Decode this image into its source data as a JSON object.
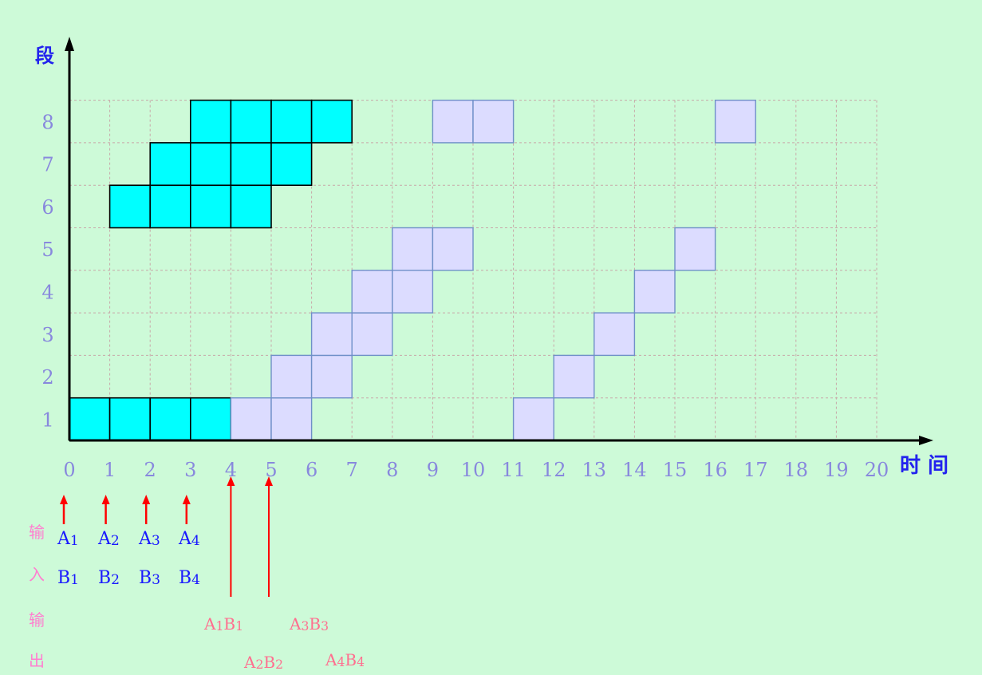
{
  "chart_data": {
    "type": "pipeline-space-time-diagram",
    "y_axis_label": "段",
    "x_axis_label": "时 间",
    "x_ticks": [
      0,
      1,
      2,
      3,
      4,
      5,
      6,
      7,
      8,
      9,
      10,
      11,
      12,
      13,
      14,
      15,
      16,
      17,
      18,
      19,
      20
    ],
    "y_ticks": [
      1,
      2,
      3,
      4,
      5,
      6,
      7,
      8
    ],
    "xlim": [
      0,
      20
    ],
    "ylim": [
      1,
      8
    ],
    "grid": true,
    "series": [
      {
        "color": "#00ffff",
        "cells": [
          {
            "segment": 1,
            "start": 0
          },
          {
            "segment": 1,
            "start": 1
          },
          {
            "segment": 1,
            "start": 2
          },
          {
            "segment": 1,
            "start": 3
          },
          {
            "segment": 6,
            "start": 1
          },
          {
            "segment": 6,
            "start": 2
          },
          {
            "segment": 6,
            "start": 3
          },
          {
            "segment": 6,
            "start": 4
          },
          {
            "segment": 7,
            "start": 2
          },
          {
            "segment": 7,
            "start": 3
          },
          {
            "segment": 7,
            "start": 4
          },
          {
            "segment": 7,
            "start": 5
          },
          {
            "segment": 8,
            "start": 3
          },
          {
            "segment": 8,
            "start": 4
          },
          {
            "segment": 8,
            "start": 5
          },
          {
            "segment": 8,
            "start": 6
          }
        ]
      },
      {
        "color": "#dcdcff",
        "cells": [
          {
            "segment": 1,
            "start": 4
          },
          {
            "segment": 1,
            "start": 5
          },
          {
            "segment": 2,
            "start": 5
          },
          {
            "segment": 2,
            "start": 6
          },
          {
            "segment": 3,
            "start": 6
          },
          {
            "segment": 3,
            "start": 7
          },
          {
            "segment": 4,
            "start": 7
          },
          {
            "segment": 4,
            "start": 8
          },
          {
            "segment": 5,
            "start": 8
          },
          {
            "segment": 5,
            "start": 9
          },
          {
            "segment": 8,
            "start": 9
          },
          {
            "segment": 8,
            "start": 10
          },
          {
            "segment": 1,
            "start": 11
          },
          {
            "segment": 2,
            "start": 12
          },
          {
            "segment": 3,
            "start": 13
          },
          {
            "segment": 4,
            "start": 14
          },
          {
            "segment": 5,
            "start": 15
          },
          {
            "segment": 8,
            "start": 16
          }
        ]
      }
    ],
    "input_arrows_at": [
      0,
      1,
      2,
      3
    ],
    "output_arrows_at": [
      4,
      5
    ]
  },
  "io": {
    "input_caption": [
      "输",
      "入"
    ],
    "output_caption": [
      "输",
      "出"
    ],
    "inputs": [
      {
        "a": "A",
        "a_sub": "1",
        "b": "B",
        "b_sub": "1"
      },
      {
        "a": "A",
        "a_sub": "2",
        "b": "B",
        "b_sub": "2"
      },
      {
        "a": "A",
        "a_sub": "3",
        "b": "B",
        "b_sub": "3"
      },
      {
        "a": "A",
        "a_sub": "4",
        "b": "B",
        "b_sub": "4"
      }
    ],
    "outputs": [
      {
        "a": "A",
        "a_sub": "1",
        "b": "B",
        "b_sub": "1"
      },
      {
        "a": "A",
        "a_sub": "2",
        "b": "B",
        "b_sub": "2"
      },
      {
        "a": "A",
        "a_sub": "3",
        "b": "B",
        "b_sub": "3"
      },
      {
        "a": "A",
        "a_sub": "4",
        "b": "B",
        "b_sub": "4"
      }
    ]
  },
  "colors": {
    "axis": "#000000",
    "grid": "#c8a8a8",
    "tick_label": "#8888dd",
    "axis_title": "#2222ee",
    "arrow": "#ff0000",
    "cyan_border": "#000000",
    "lavender_border": "#6f90c8"
  }
}
